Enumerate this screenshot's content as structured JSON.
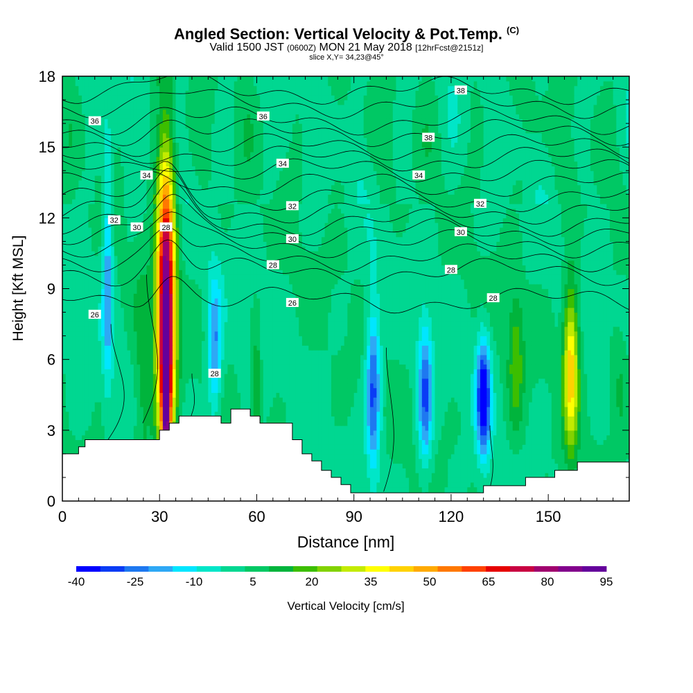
{
  "header": {
    "title": "Angled Section: Vertical Velocity & Pot.Temp.",
    "title_tag": "(C)",
    "valid_main": "Valid 1500 JST",
    "valid_utc": "(0600Z)",
    "valid_date": "MON 21 May 2018",
    "forecast": "[12hrFcst@2151z]",
    "slice": "slice X,Y= 34,23@45°"
  },
  "colorbar": {
    "label": "Vertical Velocity [cm/s]",
    "tick_labels": [
      "-40",
      "-25",
      "-10",
      "5",
      "20",
      "35",
      "50",
      "65",
      "80",
      "95"
    ],
    "colors": [
      "#0000ff",
      "#0a3cf5",
      "#1e78f0",
      "#2ea8f5",
      "#00e6ff",
      "#00e6c8",
      "#00d791",
      "#00c864",
      "#00b43c",
      "#3cbe00",
      "#82d200",
      "#c3eb00",
      "#ffff00",
      "#ffd200",
      "#ffaa00",
      "#ff7800",
      "#ff4100",
      "#e60000",
      "#c80041",
      "#a0006e",
      "#82008c",
      "#64009b"
    ]
  },
  "chart_data": {
    "type": "heatmap",
    "xlabel": "Distance [nm]",
    "ylabel": "Height [Kft MSL]",
    "xlim": [
      0,
      175
    ],
    "ylim": [
      0,
      18
    ],
    "x_ticks": [
      0,
      30,
      60,
      90,
      120,
      150
    ],
    "y_ticks": [
      0,
      3,
      6,
      9,
      12,
      15,
      18
    ],
    "velocity_features": [
      {
        "x": 32,
        "y": 8.0,
        "peak": 95
      },
      {
        "x": 32,
        "y": 3.8,
        "peak": 45
      },
      {
        "x": 25,
        "y": 4.5,
        "peak": 15
      },
      {
        "x": 60,
        "y": 4.6,
        "peak": 20
      },
      {
        "x": 47,
        "y": 6.5,
        "peak": -22
      },
      {
        "x": 14,
        "y": 9.8,
        "peak": -20
      },
      {
        "x": 96,
        "y": 4.8,
        "peak": -30
      },
      {
        "x": 112,
        "y": 4.5,
        "peak": -28
      },
      {
        "x": 130,
        "y": 4.5,
        "peak": -40
      },
      {
        "x": 140,
        "y": 6.0,
        "peak": 20
      },
      {
        "x": 157,
        "y": 5.8,
        "peak": 45
      },
      {
        "x": 172,
        "y": 5.0,
        "peak": 12
      }
    ],
    "pot_temp_contour_labels": [
      {
        "value": "38",
        "x": 123,
        "y": 17.4
      },
      {
        "value": "36",
        "x": 10,
        "y": 16.1
      },
      {
        "value": "36",
        "x": 62,
        "y": 16.3
      },
      {
        "value": "38",
        "x": 113,
        "y": 15.4
      },
      {
        "value": "34",
        "x": 26,
        "y": 13.8
      },
      {
        "value": "34",
        "x": 68,
        "y": 14.3
      },
      {
        "value": "34",
        "x": 110,
        "y": 13.8
      },
      {
        "value": "32",
        "x": 16,
        "y": 11.9
      },
      {
        "value": "32",
        "x": 71,
        "y": 12.5
      },
      {
        "value": "32",
        "x": 129,
        "y": 12.6
      },
      {
        "value": "30",
        "x": 23,
        "y": 11.6
      },
      {
        "value": "30",
        "x": 71,
        "y": 11.1
      },
      {
        "value": "30",
        "x": 123,
        "y": 11.4
      },
      {
        "value": "28",
        "x": 32,
        "y": 11.6
      },
      {
        "value": "28",
        "x": 65,
        "y": 10.0
      },
      {
        "value": "28",
        "x": 120,
        "y": 9.8
      },
      {
        "value": "28",
        "x": 133,
        "y": 8.6
      },
      {
        "value": "26",
        "x": 10,
        "y": 7.9
      },
      {
        "value": "26",
        "x": 71,
        "y": 8.4
      },
      {
        "value": "28",
        "x": 47,
        "y": 5.4
      }
    ],
    "terrain": [
      [
        0,
        2.0
      ],
      [
        5,
        2.0
      ],
      [
        5,
        2.3
      ],
      [
        7,
        2.3
      ],
      [
        7,
        2.6
      ],
      [
        30,
        2.6
      ],
      [
        30,
        3.0
      ],
      [
        33,
        3.0
      ],
      [
        33,
        3.3
      ],
      [
        36,
        3.3
      ],
      [
        36,
        3.6
      ],
      [
        49,
        3.6
      ],
      [
        49,
        3.3
      ],
      [
        52,
        3.3
      ],
      [
        52,
        3.9
      ],
      [
        58,
        3.9
      ],
      [
        58,
        3.6
      ],
      [
        61,
        3.6
      ],
      [
        61,
        3.3
      ],
      [
        71,
        3.3
      ],
      [
        71,
        2.6
      ],
      [
        74,
        2.6
      ],
      [
        74,
        2.0
      ],
      [
        77,
        2.0
      ],
      [
        77,
        1.7
      ],
      [
        80,
        1.7
      ],
      [
        80,
        1.3
      ],
      [
        83,
        1.3
      ],
      [
        83,
        1.0
      ],
      [
        86,
        1.0
      ],
      [
        86,
        0.7
      ],
      [
        89,
        0.7
      ],
      [
        89,
        0.35
      ],
      [
        130,
        0.35
      ],
      [
        130,
        0.65
      ],
      [
        143,
        0.65
      ],
      [
        143,
        1.0
      ],
      [
        152,
        1.0
      ],
      [
        152,
        1.3
      ],
      [
        159,
        1.3
      ],
      [
        159,
        1.65
      ],
      [
        175,
        1.65
      ]
    ]
  }
}
